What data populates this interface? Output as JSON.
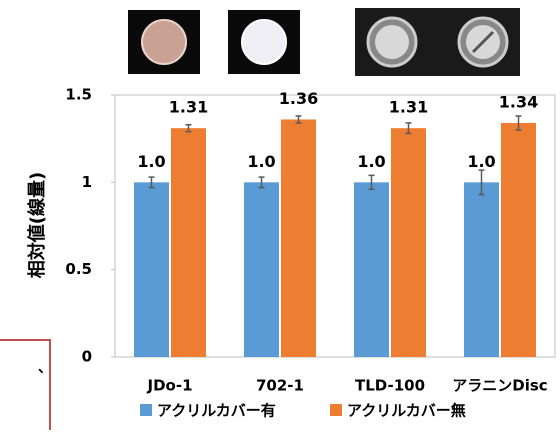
{
  "chart_data": {
    "type": "bar",
    "y_label": "相対値(線量)",
    "categories": [
      "JDo-1",
      "702-1",
      "TLD-100",
      "アラニンDisc"
    ],
    "series": [
      {
        "name": "アクリルカバー有",
        "color": "#5b9bd5",
        "values": [
          1,
          1,
          1,
          1
        ],
        "value_labels": [
          "1.0",
          "1.0",
          "1.0",
          "1.0"
        ],
        "errors": [
          0.03,
          0.03,
          0.04,
          0.07
        ]
      },
      {
        "name": "アクリルカバー無",
        "color": "#ed7d31",
        "values": [
          1.31,
          1.36,
          1.31,
          1.34
        ],
        "errors": [
          0.02,
          0.02,
          0.03,
          0.04
        ]
      }
    ],
    "ylim": [
      0,
      1.5
    ],
    "yticks": [
      0,
      0.5,
      1,
      1.5
    ],
    "grid": false,
    "side_text": "、"
  }
}
